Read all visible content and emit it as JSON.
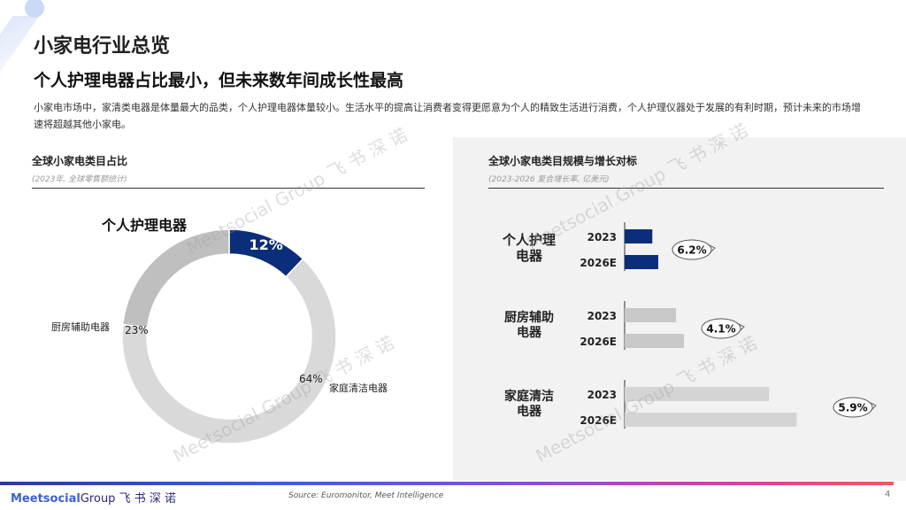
{
  "page": {
    "title": "小家电行业总览",
    "headline": "个人护理电器占比最小，但未来数年间成长性最高",
    "body": "小家电市场中，家清类电器是体量最大的品类，个人护理电器体量较小。生活水平的提高让消费者变得更愿意为个人的精致生活进行消费，个人护理仪器处于发展的有利时期，预计未来的市场增速将超越其他小家电。"
  },
  "left_panel": {
    "title": "全球小家电类目占比",
    "subtitle": "(2023年, 全球零售额统计)"
  },
  "right_panel": {
    "title": "全球小家电类目规模与增长对标",
    "subtitle": "(2023-2026 复合增长率, 亿美元)"
  },
  "watermark": {
    "brand": "Meetsocial Group",
    "cn": "飞 书 深 诺"
  },
  "footer": {
    "logo_main": "Meetsocial",
    "logo_group": "Group",
    "logo_cn": "飞 书 深 诺",
    "source": "Source: Euromonitor, Meet Intelligence",
    "page_number": "4"
  },
  "colors": {
    "highlight": "#0b2e7a",
    "grey_light": "#d9d9d9",
    "grey_mid": "#bfbfbf",
    "cagr_arrow": "#666666"
  },
  "chart_data": [
    {
      "type": "pie",
      "title": "全球小家电类目占比",
      "subtitle": "(2023年, 全球零售额统计)",
      "slices": [
        {
          "name": "个人护理电器",
          "value": 12,
          "label": "12%",
          "color": "#0b2e7a"
        },
        {
          "name": "家庭清洁电器",
          "value": 64,
          "label": "64%",
          "color": "#d9d9d9"
        },
        {
          "name": "厨房辅助电器",
          "value": 23,
          "label": "23%",
          "color": "#bfbfbf"
        }
      ]
    },
    {
      "type": "bar",
      "orientation": "horizontal",
      "title": "全球小家电类目规模与增长对标",
      "subtitle": "(2023-2026 复合增长率, 亿美元)",
      "xlim": [
        0,
        100
      ],
      "groups": [
        {
          "category": "个人护理电器",
          "label_lines": [
            "个人护理",
            "电器"
          ],
          "color": "#0b2e7a",
          "bars": [
            {
              "year": "2023",
              "value": 14
            },
            {
              "year": "2026E",
              "value": 17
            }
          ],
          "cagr": "6.2%"
        },
        {
          "category": "厨房辅助电器",
          "label_lines": [
            "厨房辅助",
            "电器"
          ],
          "color": "#c8c8c8",
          "bars": [
            {
              "year": "2023",
              "value": 26
            },
            {
              "year": "2026E",
              "value": 30
            }
          ],
          "cagr": "4.1%"
        },
        {
          "category": "家庭清洁电器",
          "label_lines": [
            "家庭清洁",
            "电器"
          ],
          "color": "#d4d4d4",
          "bars": [
            {
              "year": "2023",
              "value": 73
            },
            {
              "year": "2026E",
              "value": 87
            }
          ],
          "cagr": "5.9%"
        }
      ]
    }
  ]
}
